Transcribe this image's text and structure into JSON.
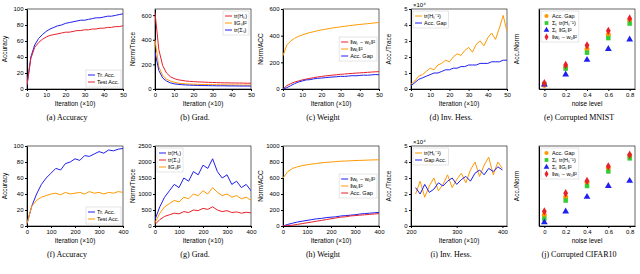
{
  "chart_data": [
    {
      "type": "line",
      "title": "(a) Accuracy",
      "x_label": "Iteration (×10)",
      "y_label": "Accuracy",
      "x": [
        0,
        2,
        4,
        6,
        8,
        10,
        12,
        14,
        16,
        18,
        20,
        22,
        24,
        26,
        28,
        30,
        32,
        34,
        36,
        38,
        40,
        42,
        44,
        46,
        48,
        50
      ],
      "xlim": [
        0,
        50
      ],
      "xticks": [
        0,
        10,
        20,
        30,
        40,
        50
      ],
      "ylim": [
        0,
        100
      ],
      "yticks": [
        0,
        20,
        40,
        60,
        80,
        100
      ],
      "legend": "bottom-right",
      "series": [
        {
          "name": "Tr. Acc.",
          "color": "#1f1fee",
          "values": [
            5,
            40,
            55,
            63,
            68,
            72,
            75,
            77,
            79,
            80,
            82,
            83,
            84,
            85,
            86,
            86,
            87,
            88,
            89,
            89,
            90,
            91,
            91,
            92,
            93,
            94
          ]
        },
        {
          "name": "Test Acc.",
          "color": "#e8202a",
          "values": [
            5,
            38,
            52,
            58,
            62,
            65,
            67,
            68,
            69,
            70,
            71,
            71,
            72,
            73,
            73,
            74,
            74,
            75,
            75,
            76,
            76,
            77,
            77,
            78,
            78,
            79
          ]
        }
      ]
    },
    {
      "type": "line",
      "title": "(b) Grad.",
      "x_label": "Iteration (×10)",
      "y_label": "Norm/Trace",
      "x": [
        0,
        2,
        4,
        6,
        8,
        10,
        12,
        14,
        16,
        18,
        20,
        22,
        24,
        26,
        28,
        30,
        32,
        34,
        36,
        38,
        40,
        42,
        44,
        46,
        48,
        50
      ],
      "xlim": [
        0,
        50
      ],
      "xticks": [
        0,
        10,
        20,
        30,
        40,
        50
      ],
      "ylim": [
        0,
        650
      ],
      "yticks": [
        0,
        200,
        400,
        600
      ],
      "legend": "top-right",
      "series": [
        {
          "name": "tr(Hₛ)",
          "color": "#e8202a",
          "values": [
            620,
            320,
            190,
            130,
            100,
            85,
            75,
            70,
            65,
            62,
            60,
            58,
            57,
            55,
            54,
            53,
            52,
            51,
            50,
            50,
            49,
            49,
            48,
            48,
            47,
            47
          ]
        },
        {
          "name": "‖Gₛ‖²",
          "color": "#ff9900",
          "values": [
            400,
            180,
            110,
            80,
            65,
            55,
            48,
            44,
            42,
            40,
            39,
            38,
            37,
            36,
            36,
            35,
            35,
            34,
            34,
            33,
            33,
            33,
            32,
            32,
            32,
            31
          ]
        },
        {
          "name": "tr(Σₛ)",
          "color": "#1f1fee",
          "values": [
            300,
            150,
            90,
            65,
            50,
            42,
            38,
            35,
            33,
            31,
            30,
            29,
            28,
            28,
            27,
            27,
            26,
            26,
            26,
            25,
            25,
            25,
            24,
            24,
            24,
            24
          ]
        }
      ]
    },
    {
      "type": "line",
      "title": "(c) Weight",
      "x_label": "Iteration (×10)",
      "y_label": "Norm/ACC",
      "x": [
        0,
        2,
        4,
        6,
        8,
        10,
        12,
        14,
        16,
        18,
        20,
        22,
        24,
        26,
        28,
        30,
        32,
        34,
        36,
        38,
        40,
        42,
        44,
        46,
        48,
        50
      ],
      "xlim": [
        0,
        50
      ],
      "xticks": [
        0,
        10,
        20,
        30,
        40,
        50
      ],
      "ylim": [
        0,
        600
      ],
      "yticks": [
        0,
        200,
        400,
        600
      ],
      "legend": "right",
      "series": [
        {
          "name": "‖wₛ − w₀‖²",
          "color": "#e8202a",
          "values": [
            0,
            25,
            40,
            52,
            60,
            68,
            74,
            80,
            85,
            90,
            94,
            98,
            101,
            104,
            107,
            110,
            112,
            115,
            117,
            119,
            121,
            123,
            125,
            127,
            129,
            130
          ]
        },
        {
          "name": "‖wₛ‖²",
          "color": "#ff9900",
          "values": [
            250,
            330,
            360,
            380,
            395,
            405,
            415,
            423,
            430,
            437,
            443,
            448,
            453,
            458,
            462,
            466,
            470,
            474,
            478,
            481,
            484,
            487,
            490,
            493,
            496,
            499
          ]
        },
        {
          "name": "Acc. Gap",
          "color": "#1f1fee",
          "values": [
            0,
            10,
            25,
            40,
            52,
            60,
            68,
            70,
            76,
            80,
            82,
            85,
            88,
            90,
            92,
            95,
            94,
            97,
            100,
            99,
            102,
            104,
            103,
            106,
            108,
            107
          ]
        }
      ]
    },
    {
      "type": "line",
      "title": "(d) Inv. Hess.",
      "x_label": "Iteration (×10)",
      "y_label": "Acc./Trace",
      "annotations": [
        "×10⁴"
      ],
      "x": [
        0,
        2,
        4,
        6,
        8,
        10,
        12,
        14,
        16,
        18,
        20,
        22,
        24,
        26,
        28,
        30,
        32,
        34,
        36,
        38,
        40,
        42,
        44,
        46,
        48,
        50
      ],
      "xlim": [
        0,
        50
      ],
      "xticks": [
        0,
        10,
        20,
        30,
        40,
        50
      ],
      "ylim": [
        0,
        5
      ],
      "yticks": [
        0,
        1,
        2,
        3,
        4,
        5
      ],
      "legend": "top-left",
      "series": [
        {
          "name": "tr(Hₛ⁻¹)",
          "color": "#ff9900",
          "values": [
            0.3,
            0.5,
            0.8,
            0.9,
            1.1,
            1.3,
            1.2,
            1.5,
            1.6,
            1.8,
            1.7,
            2.0,
            2.2,
            2.1,
            2.4,
            2.6,
            2.3,
            2.8,
            3.0,
            2.7,
            3.2,
            3.5,
            3.1,
            3.8,
            4.6,
            3.6
          ]
        },
        {
          "name": "Acc. Gap",
          "color": "#1f1fee",
          "values": [
            0.2,
            0.4,
            0.6,
            0.7,
            0.8,
            0.9,
            1.0,
            1.0,
            1.1,
            1.2,
            1.2,
            1.3,
            1.3,
            1.4,
            1.4,
            1.5,
            1.5,
            1.5,
            1.6,
            1.6,
            1.6,
            1.7,
            1.7,
            1.7,
            1.8,
            1.8
          ]
        }
      ]
    },
    {
      "type": "scatter",
      "title": "(e) Corrupted MNIST",
      "x_label": "noise level",
      "y_label": "Acc./Norm",
      "x": [
        0,
        0.2,
        0.4,
        0.6,
        0.8
      ],
      "xlim": [
        -0.05,
        0.85
      ],
      "xticks": [
        0,
        0.2,
        0.4,
        0.6,
        0.8
      ],
      "ylim": [
        0,
        1.1
      ],
      "tick_labels": "x",
      "legend": "top-left",
      "series": [
        {
          "name": "Acc. Gap",
          "color": "#ff9900",
          "marker": "circle",
          "values": [
            0.05,
            0.3,
            0.55,
            0.75,
            0.95
          ]
        },
        {
          "name": "Σₛ tr(Hₛ⁻¹)",
          "color": "#33cc33",
          "marker": "square",
          "values": [
            0.07,
            0.28,
            0.5,
            0.7,
            0.9
          ]
        },
        {
          "name": "Σₛ ‖Gₛ‖²",
          "color": "#1f1fee",
          "marker": "triangle",
          "values": [
            0.06,
            0.2,
            0.4,
            0.55,
            0.68
          ]
        },
        {
          "name": "‖wₛ − w₀‖²",
          "color": "#e8202a",
          "marker": "diamond",
          "values": [
            0.08,
            0.33,
            0.6,
            0.8,
            0.97
          ]
        }
      ]
    },
    {
      "type": "line",
      "title": "(f) Accuracy",
      "x_label": "Iteration (×10)",
      "y_label": "Accuracy",
      "x": [
        0,
        20,
        40,
        60,
        80,
        100,
        120,
        140,
        160,
        180,
        200,
        220,
        240,
        260,
        280,
        300,
        320,
        340,
        360,
        380,
        400
      ],
      "xlim": [
        0,
        400
      ],
      "xticks": [
        0,
        100,
        200,
        300,
        400
      ],
      "ylim": [
        0,
        100
      ],
      "yticks": [
        0,
        20,
        40,
        60,
        80,
        100
      ],
      "legend": "bottom-right",
      "series": [
        {
          "name": "Tr. Acc.",
          "color": "#1f1fee",
          "values": [
            3,
            25,
            40,
            52,
            60,
            66,
            72,
            70,
            78,
            80,
            84,
            82,
            88,
            87,
            90,
            93,
            91,
            95,
            94,
            96,
            97
          ]
        },
        {
          "name": "Test Acc.",
          "color": "#ff9900",
          "values": [
            3,
            25,
            32,
            36,
            38,
            40,
            41,
            39,
            42,
            40,
            41,
            42,
            40,
            43,
            41,
            42,
            40,
            42,
            41,
            43,
            42
          ]
        }
      ]
    },
    {
      "type": "line",
      "title": "(g) Grad.",
      "x_label": "Iteration (×10)",
      "y_label": "Norm/Trace",
      "x": [
        0,
        20,
        40,
        60,
        80,
        100,
        120,
        140,
        160,
        180,
        200,
        220,
        240,
        260,
        280,
        300,
        320,
        340,
        360,
        380,
        400
      ],
      "xlim": [
        0,
        400
      ],
      "xticks": [
        0,
        100,
        200,
        300,
        400
      ],
      "ylim": [
        0,
        2500
      ],
      "yticks": [
        0,
        500,
        1000,
        1500,
        2000,
        2500
      ],
      "legend": "top-left",
      "series": [
        {
          "name": "tr(Hₛ)",
          "color": "#1f1fee",
          "values": [
            200,
            600,
            900,
            1100,
            1300,
            1200,
            1500,
            1400,
            1700,
            1600,
            1900,
            1800,
            2100,
            1700,
            1500,
            1600,
            1300,
            1400,
            1200,
            1300,
            1100
          ]
        },
        {
          "name": "tr(Σₛ)",
          "color": "#e8202a",
          "values": [
            50,
            200,
            300,
            350,
            400,
            380,
            450,
            420,
            500,
            480,
            550,
            520,
            600,
            500,
            450,
            480,
            420,
            440,
            400,
            430,
            410
          ]
        },
        {
          "name": "‖Gₛ‖²",
          "color": "#ff9900",
          "values": [
            100,
            400,
            600,
            700,
            800,
            750,
            900,
            850,
            1000,
            950,
            1100,
            1000,
            1200,
            1050,
            950,
            1000,
            900,
            950,
            850,
            900,
            800
          ]
        }
      ]
    },
    {
      "type": "line",
      "title": "(h) Weight",
      "x_label": "Iteration (×10)",
      "y_label": "Norm/ACC",
      "x": [
        0,
        20,
        40,
        60,
        80,
        100,
        120,
        140,
        160,
        180,
        200,
        220,
        240,
        260,
        280,
        300,
        320,
        340,
        360,
        380,
        400
      ],
      "xlim": [
        0,
        400
      ],
      "xticks": [
        0,
        100,
        200,
        300,
        400
      ],
      "ylim": [
        0,
        1000
      ],
      "yticks": [
        0,
        200,
        400,
        600,
        800,
        1000
      ],
      "legend": "right",
      "series": [
        {
          "name": "‖wₛ − w₀‖²",
          "color": "#1f1fee",
          "values": [
            0,
            20,
            35,
            50,
            60,
            70,
            80,
            90,
            95,
            105,
            110,
            115,
            125,
            130,
            135,
            140,
            150,
            155,
            160,
            165,
            170
          ]
        },
        {
          "name": "‖wₛ‖²",
          "color": "#ff9900",
          "values": [
            600,
            680,
            720,
            740,
            755,
            765,
            775,
            780,
            790,
            795,
            800,
            805,
            810,
            812,
            815,
            818,
            820,
            822,
            825,
            826,
            828
          ]
        },
        {
          "name": "Acc. Gap",
          "color": "#e8202a",
          "values": [
            0,
            5,
            10,
            20,
            30,
            40,
            50,
            60,
            70,
            80,
            90,
            100,
            110,
            115,
            125,
            130,
            135,
            140,
            145,
            150,
            155
          ]
        }
      ]
    },
    {
      "type": "line",
      "title": "(i) Inv. Hess.",
      "x_label": "Iteration (×10)",
      "y_label": "Acc./Trace",
      "annotations": [
        "×10⁴"
      ],
      "x": [
        210,
        220,
        230,
        240,
        250,
        260,
        270,
        280,
        290,
        300,
        310,
        320,
        330,
        340,
        350,
        360,
        370,
        380,
        390,
        400
      ],
      "xlim": [
        200,
        410
      ],
      "xticks": [
        200,
        300,
        400
      ],
      "ylim": [
        0,
        5
      ],
      "yticks": [
        0,
        1,
        2,
        3,
        4,
        5
      ],
      "legend": "top-left",
      "series": [
        {
          "name": "tr(Hₛ⁻¹)",
          "color": "#ff9900",
          "values": [
            2.0,
            2.8,
            1.8,
            2.5,
            3.0,
            2.2,
            2.6,
            3.2,
            2.4,
            2.9,
            3.3,
            2.7,
            3.5,
            4.0,
            3.1,
            3.8,
            4.3,
            3.2,
            4.0,
            3.6
          ]
        },
        {
          "name": "Gap Acc.",
          "color": "#1f1fee",
          "values": [
            2.4,
            2.0,
            2.6,
            2.1,
            2.3,
            2.7,
            2.5,
            2.8,
            3.0,
            2.6,
            2.9,
            3.1,
            2.8,
            3.3,
            3.5,
            3.2,
            3.6,
            3.4,
            3.7,
            3.5
          ]
        }
      ]
    },
    {
      "type": "scatter",
      "title": "(j) Corrupted CIFAR10",
      "x_label": "noise level",
      "y_label": "Acc./Norm",
      "x": [
        0,
        0.2,
        0.4,
        0.6,
        0.8
      ],
      "xlim": [
        -0.05,
        0.85
      ],
      "xticks": [
        0,
        0.2,
        0.4,
        0.6,
        0.8
      ],
      "ylim": [
        0,
        1.1
      ],
      "tick_labels": "x",
      "legend": "top-left",
      "series": [
        {
          "name": "Acc. Gap",
          "color": "#ff9900",
          "marker": "circle",
          "values": [
            0.15,
            0.4,
            0.6,
            0.8,
            0.97
          ]
        },
        {
          "name": "Σₛ tr(Hₛ⁻¹)",
          "color": "#33cc33",
          "marker": "square",
          "values": [
            0.1,
            0.35,
            0.55,
            0.75,
            0.93
          ]
        },
        {
          "name": "Σₛ ‖Gₛ‖²",
          "color": "#1f1fee",
          "marker": "triangle",
          "values": [
            0.05,
            0.2,
            0.4,
            0.55,
            0.62
          ]
        },
        {
          "name": "‖wₛ − w₀‖²",
          "color": "#e8202a",
          "marker": "diamond",
          "values": [
            0.2,
            0.45,
            0.62,
            0.82,
            0.98
          ]
        }
      ]
    }
  ]
}
